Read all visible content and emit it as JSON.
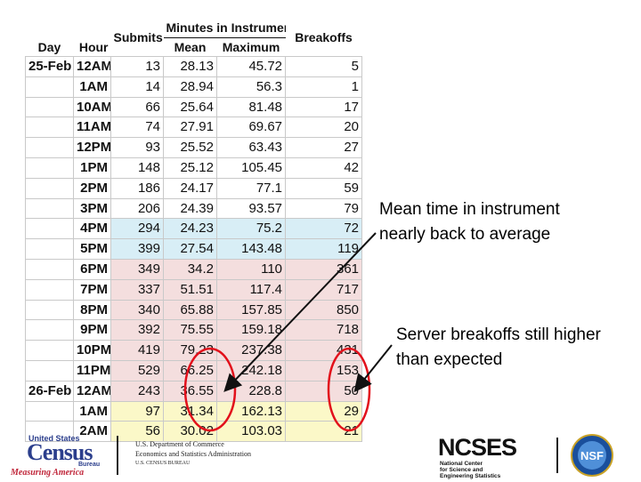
{
  "table": {
    "headers": {
      "day": "Day",
      "hour": "Hour",
      "submits": "Submits",
      "group": "Minutes in Instrument",
      "mean": "Mean",
      "maximum": "Maximum",
      "breakoffs": "Breakoffs"
    },
    "rows": [
      {
        "day": "25-Feb",
        "hour": "12AM",
        "submits": "13",
        "mean": "28.13",
        "max": "45.72",
        "breakoffs": "5",
        "tone": "white"
      },
      {
        "day": "",
        "hour": "1AM",
        "submits": "14",
        "mean": "28.94",
        "max": "56.3",
        "breakoffs": "1",
        "tone": "white"
      },
      {
        "day": "",
        "hour": "10AM",
        "submits": "66",
        "mean": "25.64",
        "max": "81.48",
        "breakoffs": "17",
        "tone": "white"
      },
      {
        "day": "",
        "hour": "11AM",
        "submits": "74",
        "mean": "27.91",
        "max": "69.67",
        "breakoffs": "20",
        "tone": "white"
      },
      {
        "day": "",
        "hour": "12PM",
        "submits": "93",
        "mean": "25.52",
        "max": "63.43",
        "breakoffs": "27",
        "tone": "white"
      },
      {
        "day": "",
        "hour": "1PM",
        "submits": "148",
        "mean": "25.12",
        "max": "105.45",
        "breakoffs": "42",
        "tone": "white"
      },
      {
        "day": "",
        "hour": "2PM",
        "submits": "186",
        "mean": "24.17",
        "max": "77.1",
        "breakoffs": "59",
        "tone": "white"
      },
      {
        "day": "",
        "hour": "3PM",
        "submits": "206",
        "mean": "24.39",
        "max": "93.57",
        "breakoffs": "79",
        "tone": "white"
      },
      {
        "day": "",
        "hour": "4PM",
        "submits": "294",
        "mean": "24.23",
        "max": "75.2",
        "breakoffs": "72",
        "tone": "blue"
      },
      {
        "day": "",
        "hour": "5PM",
        "submits": "399",
        "mean": "27.54",
        "max": "143.48",
        "breakoffs": "119",
        "tone": "blue"
      },
      {
        "day": "",
        "hour": "6PM",
        "submits": "349",
        "mean": "34.2",
        "max": "110",
        "breakoffs": "361",
        "tone": "pink"
      },
      {
        "day": "",
        "hour": "7PM",
        "submits": "337",
        "mean": "51.51",
        "max": "117.4",
        "breakoffs": "717",
        "tone": "pink"
      },
      {
        "day": "",
        "hour": "8PM",
        "submits": "340",
        "mean": "65.88",
        "max": "157.85",
        "breakoffs": "850",
        "tone": "pink"
      },
      {
        "day": "",
        "hour": "9PM",
        "submits": "392",
        "mean": "75.55",
        "max": "159.18",
        "breakoffs": "718",
        "tone": "pink"
      },
      {
        "day": "",
        "hour": "10PM",
        "submits": "419",
        "mean": "79.23",
        "max": "237.38",
        "breakoffs": "431",
        "tone": "pink"
      },
      {
        "day": "",
        "hour": "11PM",
        "submits": "529",
        "mean": "66.25",
        "max": "242.18",
        "breakoffs": "153",
        "tone": "pink"
      },
      {
        "day": "26-Feb",
        "hour": "12AM",
        "submits": "243",
        "mean": "36.55",
        "max": "228.8",
        "breakoffs": "50",
        "tone": "pink"
      },
      {
        "day": "",
        "hour": "1AM",
        "submits": "97",
        "mean": "31.34",
        "max": "162.13",
        "breakoffs": "29",
        "tone": "yellow"
      },
      {
        "day": "",
        "hour": "2AM",
        "submits": "56",
        "mean": "30.02",
        "max": "103.03",
        "breakoffs": "21",
        "tone": "yellow"
      }
    ]
  },
  "annotations": {
    "mean_note_line1": "Mean time in instrument",
    "mean_note_line2": "nearly back to average",
    "breakoff_note_line1": "Server breakoffs still higher",
    "breakoff_note_line2": "than expected"
  },
  "footer": {
    "census_top": "United States",
    "census_main": "Census",
    "census_bureau": "Bureau",
    "census_tagline": "Measuring America",
    "doc_line1": "U.S. Department of Commerce",
    "doc_line2": "Economics and Statistics Administration",
    "doc_line3": "U.S. CENSUS BUREAU",
    "ncses": "NCSES",
    "ncses_sub1": "National Center",
    "ncses_sub2": "for Science and",
    "ncses_sub3": "Engineering Statistics",
    "nsf": "NSF"
  },
  "colors": {
    "blue_row": "#d8eef6",
    "pink_row": "#f4dede",
    "yellow_row": "#fbf8c8",
    "circle": "#e2101b"
  }
}
